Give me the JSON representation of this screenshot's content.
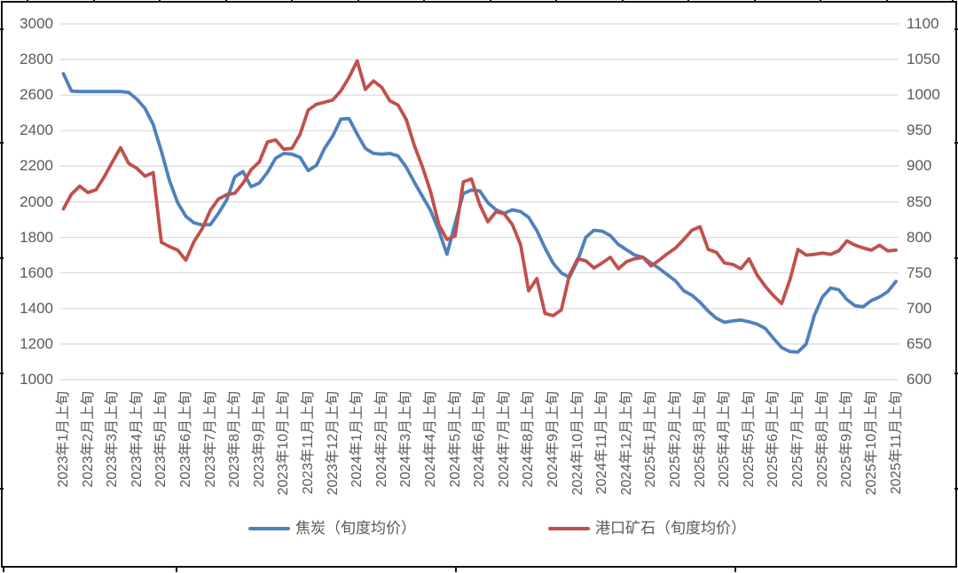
{
  "colors": {
    "coke_line": "#4f81bd",
    "ore_line": "#c0504d",
    "gridline": "#d9d9d9",
    "axis_text": "#595959",
    "frame": "#111111",
    "background": "#ffffff"
  },
  "legend": {
    "items": [
      {
        "label": "焦炭（旬度均价）",
        "color": "#4f81bd"
      },
      {
        "label": "港口矿石（旬度均价）",
        "color": "#c0504d"
      }
    ]
  },
  "chart_data": {
    "type": "line",
    "title": "",
    "xlabel": "",
    "ylabel_left": "",
    "ylabel_right": "",
    "grid": "horizontal",
    "legend_position": "bottom",
    "points_per_label": 3,
    "x_tick_labels": [
      "2023年1月上旬",
      "2023年2月上旬",
      "2023年3月上旬",
      "2023年4月上旬",
      "2023年5月上旬",
      "2023年6月上旬",
      "2023年7月上旬",
      "2023年8月上旬",
      "2023年9月上旬",
      "2023年10月上旬",
      "2023年11月上旬",
      "2023年12月上旬",
      "2024年1月上旬",
      "2024年2月上旬",
      "2024年3月上旬",
      "2024年4月上旬",
      "2024年5月上旬",
      "2024年6月上旬",
      "2024年7月上旬",
      "2024年8月上旬",
      "2024年9月上旬",
      "2024年10月上旬",
      "2024年11月上旬",
      "2024年12月上旬",
      "2025年1月上旬",
      "2025年2月上旬",
      "2025年3月上旬",
      "2025年4月上旬",
      "2025年5月上旬",
      "2025年6月上旬",
      "2025年7月上旬",
      "2025年8月上旬",
      "2025年9月上旬",
      "2025年10月上旬",
      "2025年11月上旬"
    ],
    "left_axis": {
      "min": 1000,
      "max": 3000,
      "step": 200,
      "tick_labels": [
        "3000",
        "2800",
        "2600",
        "2400",
        "2200",
        "2000",
        "1800",
        "1600",
        "1400",
        "1200",
        "1000"
      ]
    },
    "right_axis": {
      "min": 600,
      "max": 1100,
      "step": 50,
      "tick_labels": [
        "1100",
        "1050",
        "1000",
        "950",
        "900",
        "850",
        "800",
        "750",
        "700",
        "650",
        "600"
      ]
    },
    "series": [
      {
        "name": "焦炭（旬度均价）",
        "axis": "left",
        "color": "#4f81bd",
        "values": [
          2720,
          2622,
          2620,
          2620,
          2620,
          2620,
          2620,
          2620,
          2615,
          2577,
          2525,
          2435,
          2285,
          2118,
          1995,
          1918,
          1882,
          1870,
          1872,
          1935,
          2010,
          2140,
          2170,
          2085,
          2105,
          2165,
          2245,
          2272,
          2268,
          2250,
          2175,
          2205,
          2300,
          2370,
          2465,
          2468,
          2380,
          2300,
          2272,
          2268,
          2272,
          2258,
          2195,
          2110,
          2030,
          1950,
          1838,
          1705,
          1880,
          2046,
          2066,
          2062,
          1995,
          1955,
          1935,
          1955,
          1945,
          1912,
          1838,
          1740,
          1655,
          1600,
          1575,
          1670,
          1800,
          1840,
          1835,
          1810,
          1760,
          1730,
          1700,
          1688,
          1656,
          1625,
          1590,
          1555,
          1500,
          1475,
          1435,
          1385,
          1345,
          1322,
          1330,
          1335,
          1325,
          1312,
          1288,
          1232,
          1180,
          1158,
          1155,
          1200,
          1360,
          1465,
          1515,
          1505,
          1450,
          1415,
          1410,
          1445,
          1465,
          1495,
          1552
        ]
      },
      {
        "name": "港口矿石（旬度均价）",
        "axis": "right",
        "color": "#c0504d",
        "values": [
          840,
          861,
          872,
          863,
          867,
          885,
          906,
          926,
          904,
          897,
          886,
          891,
          793,
          787,
          782,
          768,
          794,
          812,
          838,
          854,
          860,
          862,
          876,
          895,
          906,
          934,
          937,
          924,
          925,
          945,
          979,
          987,
          990,
          993,
          1006,
          1025,
          1048,
          1008,
          1020,
          1011,
          992,
          986,
          966,
          929,
          899,
          864,
          818,
          797,
          802,
          878,
          882,
          846,
          822,
          836,
          833,
          818,
          790,
          725,
          742,
          693,
          690,
          698,
          747,
          770,
          767,
          757,
          764,
          772,
          756,
          766,
          770,
          772,
          760,
          768,
          777,
          785,
          797,
          810,
          815,
          783,
          779,
          764,
          762,
          756,
          770,
          747,
          731,
          718,
          707,
          740,
          783,
          775,
          776,
          778,
          776,
          781,
          795,
          789,
          785,
          782,
          789,
          781,
          782
        ]
      }
    ]
  }
}
